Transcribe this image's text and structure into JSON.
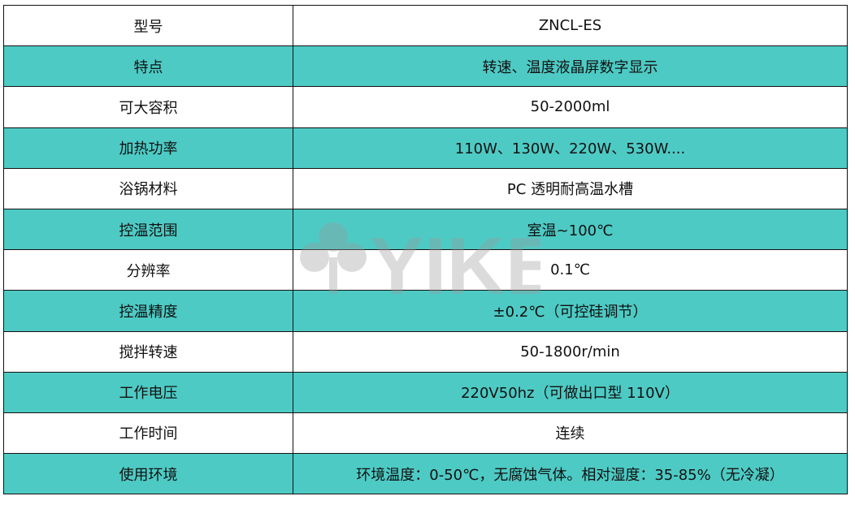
{
  "colors": {
    "teal": "#4ecac4",
    "border": "#111111"
  },
  "watermark": {
    "text": "YIKE",
    "icon": "clover-icon"
  },
  "rows": [
    {
      "label": "型号",
      "value": "ZNCL-ES"
    },
    {
      "label": "特点",
      "value": "转速、温度液晶屏数字显示"
    },
    {
      "label": "可大容积",
      "value": "50-2000ml"
    },
    {
      "label": "加热功率",
      "value": "110W、130W、220W、530W...."
    },
    {
      "label": "浴锅材料",
      "value": "PC 透明耐高温水槽"
    },
    {
      "label": "控温范围",
      "value": "室温~100℃"
    },
    {
      "label": "分辨率",
      "value": "0.1℃"
    },
    {
      "label": "控温精度",
      "value": "±0.2℃（可控硅调节）"
    },
    {
      "label": "搅拌转速",
      "value": "50-1800r/min"
    },
    {
      "label": "工作电压",
      "value": "220V50hz（可做出口型 110V）"
    },
    {
      "label": "工作时间",
      "value": "连续"
    },
    {
      "label": "使用环境",
      "value": "环境温度：0-50℃，无腐蚀气体。相对湿度：35-85%（无冷凝）"
    }
  ]
}
